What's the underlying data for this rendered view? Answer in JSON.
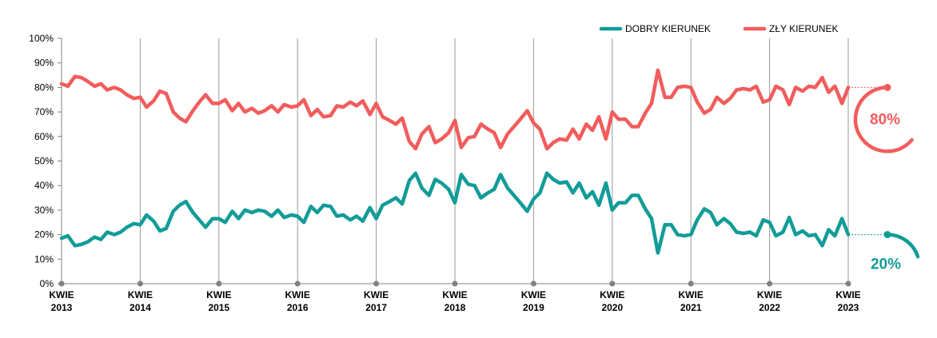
{
  "chart_data": {
    "type": "line",
    "title": "",
    "xlabel": "",
    "ylabel": "",
    "ylim": [
      0,
      100
    ],
    "y_ticks": [
      "0%",
      "10%",
      "20%",
      "30%",
      "40%",
      "50%",
      "60%",
      "70%",
      "80%",
      "90%",
      "100%"
    ],
    "x_ticks": [
      {
        "month": "KWIE",
        "year": "2013"
      },
      {
        "month": "KWIE",
        "year": "2014"
      },
      {
        "month": "KWIE",
        "year": "2015"
      },
      {
        "month": "KWIE",
        "year": "2016"
      },
      {
        "month": "KWIE",
        "year": "2017"
      },
      {
        "month": "KWIE",
        "year": "2018"
      },
      {
        "month": "KWIE",
        "year": "2019"
      },
      {
        "month": "KWIE",
        "year": "2020"
      },
      {
        "month": "KWIE",
        "year": "2021"
      },
      {
        "month": "KWIE",
        "year": "2022"
      },
      {
        "month": "KWIE",
        "year": "2023"
      }
    ],
    "x_start": "2013-04",
    "x_end": "2023-04",
    "grid": "vertical",
    "legend_position": "top-right",
    "series": [
      {
        "name": "DOBRY KIERUNEK",
        "color": "#119c98",
        "final_label": "20%",
        "values": [
          {
            "x": 2013.25,
            "y": 18.5
          },
          {
            "x": 2013.33,
            "y": 19.5
          },
          {
            "x": 2013.42,
            "y": 15.5
          },
          {
            "x": 2013.5,
            "y": 16
          },
          {
            "x": 2013.58,
            "y": 17
          },
          {
            "x": 2013.67,
            "y": 19
          },
          {
            "x": 2013.75,
            "y": 18
          },
          {
            "x": 2013.83,
            "y": 21
          },
          {
            "x": 2013.92,
            "y": 20
          },
          {
            "x": 2014.0,
            "y": 21
          },
          {
            "x": 2014.08,
            "y": 23
          },
          {
            "x": 2014.17,
            "y": 24.5
          },
          {
            "x": 2014.25,
            "y": 24
          },
          {
            "x": 2014.33,
            "y": 28
          },
          {
            "x": 2014.42,
            "y": 25.5
          },
          {
            "x": 2014.5,
            "y": 21.5
          },
          {
            "x": 2014.58,
            "y": 22.5
          },
          {
            "x": 2014.67,
            "y": 29.5
          },
          {
            "x": 2014.75,
            "y": 32
          },
          {
            "x": 2014.83,
            "y": 33.5
          },
          {
            "x": 2014.92,
            "y": 29
          },
          {
            "x": 2015.0,
            "y": 26
          },
          {
            "x": 2015.08,
            "y": 23
          },
          {
            "x": 2015.17,
            "y": 26.5
          },
          {
            "x": 2015.25,
            "y": 26.5
          },
          {
            "x": 2015.33,
            "y": 25
          },
          {
            "x": 2015.42,
            "y": 29.5
          },
          {
            "x": 2015.5,
            "y": 26.5
          },
          {
            "x": 2015.58,
            "y": 30
          },
          {
            "x": 2015.67,
            "y": 29
          },
          {
            "x": 2015.75,
            "y": 30
          },
          {
            "x": 2015.83,
            "y": 29.5
          },
          {
            "x": 2015.92,
            "y": 27.5
          },
          {
            "x": 2016.0,
            "y": 30
          },
          {
            "x": 2016.08,
            "y": 27
          },
          {
            "x": 2016.17,
            "y": 28
          },
          {
            "x": 2016.25,
            "y": 27.5
          },
          {
            "x": 2016.33,
            "y": 25
          },
          {
            "x": 2016.42,
            "y": 31.5
          },
          {
            "x": 2016.5,
            "y": 29
          },
          {
            "x": 2016.58,
            "y": 32
          },
          {
            "x": 2016.67,
            "y": 31.5
          },
          {
            "x": 2016.75,
            "y": 27.5
          },
          {
            "x": 2016.83,
            "y": 28
          },
          {
            "x": 2016.92,
            "y": 26
          },
          {
            "x": 2017.0,
            "y": 27.5
          },
          {
            "x": 2017.08,
            "y": 25.5
          },
          {
            "x": 2017.17,
            "y": 31
          },
          {
            "x": 2017.25,
            "y": 26.5
          },
          {
            "x": 2017.33,
            "y": 32
          },
          {
            "x": 2017.42,
            "y": 33.5
          },
          {
            "x": 2017.5,
            "y": 35
          },
          {
            "x": 2017.58,
            "y": 32.5
          },
          {
            "x": 2017.67,
            "y": 42
          },
          {
            "x": 2017.75,
            "y": 45
          },
          {
            "x": 2017.83,
            "y": 39
          },
          {
            "x": 2017.92,
            "y": 36
          },
          {
            "x": 2018.0,
            "y": 42.5
          },
          {
            "x": 2018.08,
            "y": 41
          },
          {
            "x": 2018.17,
            "y": 38.5
          },
          {
            "x": 2018.25,
            "y": 33
          },
          {
            "x": 2018.33,
            "y": 44.5
          },
          {
            "x": 2018.42,
            "y": 40.5
          },
          {
            "x": 2018.5,
            "y": 40
          },
          {
            "x": 2018.58,
            "y": 35
          },
          {
            "x": 2018.67,
            "y": 37
          },
          {
            "x": 2018.75,
            "y": 38.5
          },
          {
            "x": 2018.83,
            "y": 44.5
          },
          {
            "x": 2018.92,
            "y": 39
          },
          {
            "x": 2019.0,
            "y": 36
          },
          {
            "x": 2019.08,
            "y": 33
          },
          {
            "x": 2019.17,
            "y": 29.5
          },
          {
            "x": 2019.25,
            "y": 34.5
          },
          {
            "x": 2019.33,
            "y": 37
          },
          {
            "x": 2019.42,
            "y": 45
          },
          {
            "x": 2019.5,
            "y": 42.5
          },
          {
            "x": 2019.58,
            "y": 41
          },
          {
            "x": 2019.67,
            "y": 41.5
          },
          {
            "x": 2019.75,
            "y": 37
          },
          {
            "x": 2019.83,
            "y": 41
          },
          {
            "x": 2019.92,
            "y": 35
          },
          {
            "x": 2020.0,
            "y": 37.5
          },
          {
            "x": 2020.08,
            "y": 32
          },
          {
            "x": 2020.17,
            "y": 41
          },
          {
            "x": 2020.25,
            "y": 30
          },
          {
            "x": 2020.33,
            "y": 33
          },
          {
            "x": 2020.42,
            "y": 33
          },
          {
            "x": 2020.5,
            "y": 36
          },
          {
            "x": 2020.58,
            "y": 36
          },
          {
            "x": 2020.67,
            "y": 30.5
          },
          {
            "x": 2020.75,
            "y": 26.5
          },
          {
            "x": 2020.83,
            "y": 12.5
          },
          {
            "x": 2020.92,
            "y": 24
          },
          {
            "x": 2021.0,
            "y": 24
          },
          {
            "x": 2021.08,
            "y": 20
          },
          {
            "x": 2021.17,
            "y": 19.5
          },
          {
            "x": 2021.25,
            "y": 20
          },
          {
            "x": 2021.33,
            "y": 26
          },
          {
            "x": 2021.42,
            "y": 30.5
          },
          {
            "x": 2021.5,
            "y": 29
          },
          {
            "x": 2021.58,
            "y": 24
          },
          {
            "x": 2021.67,
            "y": 26.5
          },
          {
            "x": 2021.75,
            "y": 24.5
          },
          {
            "x": 2021.83,
            "y": 21
          },
          {
            "x": 2021.92,
            "y": 20.5
          },
          {
            "x": 2022.0,
            "y": 21
          },
          {
            "x": 2022.08,
            "y": 19.5
          },
          {
            "x": 2022.17,
            "y": 26
          },
          {
            "x": 2022.25,
            "y": 25
          },
          {
            "x": 2022.33,
            "y": 19.5
          },
          {
            "x": 2022.42,
            "y": 21
          },
          {
            "x": 2022.5,
            "y": 27
          },
          {
            "x": 2022.58,
            "y": 20
          },
          {
            "x": 2022.67,
            "y": 21.5
          },
          {
            "x": 2022.75,
            "y": 19.5
          },
          {
            "x": 2022.83,
            "y": 20
          },
          {
            "x": 2022.92,
            "y": 15.5
          },
          {
            "x": 2023.0,
            "y": 22
          },
          {
            "x": 2023.08,
            "y": 19.5
          },
          {
            "x": 2023.17,
            "y": 26.5
          },
          {
            "x": 2023.25,
            "y": 20
          }
        ]
      },
      {
        "name": "ZŁY KIERUNEK",
        "color": "#f25c5c",
        "final_label": "80%",
        "values": [
          {
            "x": 2013.25,
            "y": 81.5
          },
          {
            "x": 2013.33,
            "y": 80.5
          },
          {
            "x": 2013.42,
            "y": 84.5
          },
          {
            "x": 2013.5,
            "y": 84
          },
          {
            "x": 2013.58,
            "y": 82.5
          },
          {
            "x": 2013.67,
            "y": 80.5
          },
          {
            "x": 2013.75,
            "y": 81.5
          },
          {
            "x": 2013.83,
            "y": 79
          },
          {
            "x": 2013.92,
            "y": 80
          },
          {
            "x": 2014.0,
            "y": 79
          },
          {
            "x": 2014.08,
            "y": 77
          },
          {
            "x": 2014.17,
            "y": 75.5
          },
          {
            "x": 2014.25,
            "y": 76
          },
          {
            "x": 2014.33,
            "y": 72
          },
          {
            "x": 2014.42,
            "y": 74.5
          },
          {
            "x": 2014.5,
            "y": 78.5
          },
          {
            "x": 2014.58,
            "y": 77.5
          },
          {
            "x": 2014.67,
            "y": 70
          },
          {
            "x": 2014.75,
            "y": 67.5
          },
          {
            "x": 2014.83,
            "y": 66
          },
          {
            "x": 2014.92,
            "y": 70.5
          },
          {
            "x": 2015.0,
            "y": 74
          },
          {
            "x": 2015.08,
            "y": 77
          },
          {
            "x": 2015.17,
            "y": 73.5
          },
          {
            "x": 2015.25,
            "y": 73.5
          },
          {
            "x": 2015.33,
            "y": 75
          },
          {
            "x": 2015.42,
            "y": 70.5
          },
          {
            "x": 2015.5,
            "y": 73.5
          },
          {
            "x": 2015.58,
            "y": 70
          },
          {
            "x": 2015.67,
            "y": 71.5
          },
          {
            "x": 2015.75,
            "y": 69.5
          },
          {
            "x": 2015.83,
            "y": 70.5
          },
          {
            "x": 2015.92,
            "y": 72.5
          },
          {
            "x": 2016.0,
            "y": 70
          },
          {
            "x": 2016.08,
            "y": 73
          },
          {
            "x": 2016.17,
            "y": 72
          },
          {
            "x": 2016.25,
            "y": 72.5
          },
          {
            "x": 2016.33,
            "y": 75
          },
          {
            "x": 2016.42,
            "y": 68.5
          },
          {
            "x": 2016.5,
            "y": 71
          },
          {
            "x": 2016.58,
            "y": 68
          },
          {
            "x": 2016.67,
            "y": 68.5
          },
          {
            "x": 2016.75,
            "y": 72.5
          },
          {
            "x": 2016.83,
            "y": 72
          },
          {
            "x": 2016.92,
            "y": 74
          },
          {
            "x": 2017.0,
            "y": 72.5
          },
          {
            "x": 2017.08,
            "y": 74.5
          },
          {
            "x": 2017.17,
            "y": 69
          },
          {
            "x": 2017.25,
            "y": 73.5
          },
          {
            "x": 2017.33,
            "y": 68
          },
          {
            "x": 2017.42,
            "y": 66.5
          },
          {
            "x": 2017.5,
            "y": 65
          },
          {
            "x": 2017.58,
            "y": 67.5
          },
          {
            "x": 2017.67,
            "y": 58
          },
          {
            "x": 2017.75,
            "y": 55
          },
          {
            "x": 2017.83,
            "y": 61
          },
          {
            "x": 2017.92,
            "y": 64
          },
          {
            "x": 2018.0,
            "y": 57.5
          },
          {
            "x": 2018.08,
            "y": 59
          },
          {
            "x": 2018.17,
            "y": 61.5
          },
          {
            "x": 2018.25,
            "y": 66.5
          },
          {
            "x": 2018.33,
            "y": 55.5
          },
          {
            "x": 2018.42,
            "y": 59.5
          },
          {
            "x": 2018.5,
            "y": 60
          },
          {
            "x": 2018.58,
            "y": 65
          },
          {
            "x": 2018.67,
            "y": 63
          },
          {
            "x": 2018.75,
            "y": 61.5
          },
          {
            "x": 2018.83,
            "y": 55.5
          },
          {
            "x": 2018.92,
            "y": 61
          },
          {
            "x": 2019.0,
            "y": 64
          },
          {
            "x": 2019.08,
            "y": 67
          },
          {
            "x": 2019.17,
            "y": 70.5
          },
          {
            "x": 2019.25,
            "y": 65.5
          },
          {
            "x": 2019.33,
            "y": 63
          },
          {
            "x": 2019.42,
            "y": 55
          },
          {
            "x": 2019.5,
            "y": 57.5
          },
          {
            "x": 2019.58,
            "y": 59
          },
          {
            "x": 2019.67,
            "y": 58.5
          },
          {
            "x": 2019.75,
            "y": 63
          },
          {
            "x": 2019.83,
            "y": 59
          },
          {
            "x": 2019.92,
            "y": 65
          },
          {
            "x": 2020.0,
            "y": 62.5
          },
          {
            "x": 2020.08,
            "y": 68
          },
          {
            "x": 2020.17,
            "y": 59
          },
          {
            "x": 2020.25,
            "y": 70
          },
          {
            "x": 2020.33,
            "y": 67
          },
          {
            "x": 2020.42,
            "y": 67
          },
          {
            "x": 2020.5,
            "y": 64
          },
          {
            "x": 2020.58,
            "y": 64
          },
          {
            "x": 2020.67,
            "y": 69.5
          },
          {
            "x": 2020.75,
            "y": 73.5
          },
          {
            "x": 2020.83,
            "y": 87
          },
          {
            "x": 2020.92,
            "y": 76
          },
          {
            "x": 2021.0,
            "y": 76
          },
          {
            "x": 2021.08,
            "y": 80
          },
          {
            "x": 2021.17,
            "y": 80.5
          },
          {
            "x": 2021.25,
            "y": 80
          },
          {
            "x": 2021.33,
            "y": 74
          },
          {
            "x": 2021.42,
            "y": 69.5
          },
          {
            "x": 2021.5,
            "y": 71
          },
          {
            "x": 2021.58,
            "y": 76
          },
          {
            "x": 2021.67,
            "y": 73.5
          },
          {
            "x": 2021.75,
            "y": 75.5
          },
          {
            "x": 2021.83,
            "y": 79
          },
          {
            "x": 2021.92,
            "y": 79.5
          },
          {
            "x": 2022.0,
            "y": 79
          },
          {
            "x": 2022.08,
            "y": 80.5
          },
          {
            "x": 2022.17,
            "y": 74
          },
          {
            "x": 2022.25,
            "y": 75
          },
          {
            "x": 2022.33,
            "y": 80.5
          },
          {
            "x": 2022.42,
            "y": 79
          },
          {
            "x": 2022.5,
            "y": 73
          },
          {
            "x": 2022.58,
            "y": 80
          },
          {
            "x": 2022.67,
            "y": 78.5
          },
          {
            "x": 2022.75,
            "y": 80.5
          },
          {
            "x": 2022.83,
            "y": 80
          },
          {
            "x": 2022.92,
            "y": 84
          },
          {
            "x": 2023.0,
            "y": 78
          },
          {
            "x": 2023.08,
            "y": 80.5
          },
          {
            "x": 2023.17,
            "y": 73.5
          },
          {
            "x": 2023.25,
            "y": 80
          }
        ]
      }
    ]
  }
}
